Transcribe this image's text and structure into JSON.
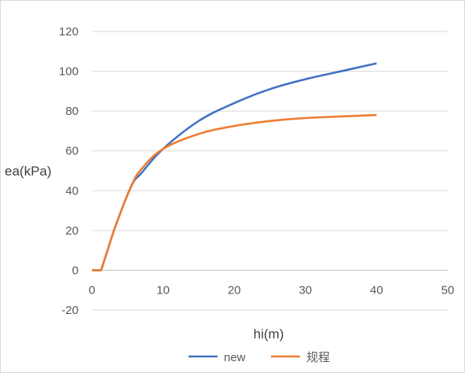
{
  "chart_data": {
    "type": "line",
    "title": "",
    "xlabel": "hi(m)",
    "ylabel": "ea(kPa)",
    "xlim": [
      0,
      50
    ],
    "ylim": [
      -20,
      120
    ],
    "x_ticks": [
      0,
      10,
      20,
      30,
      40,
      50
    ],
    "y_ticks": [
      -20,
      0,
      20,
      40,
      60,
      80,
      100,
      120
    ],
    "grid": "horizontal",
    "legend_position": "bottom",
    "series": [
      {
        "name": "new",
        "color": "#4472c4",
        "x": [
          0,
          1.3,
          3,
          5.5,
          7,
          10,
          15,
          20,
          25,
          30,
          35,
          40
        ],
        "y": [
          0,
          0,
          19,
          42,
          49,
          61,
          75,
          84,
          91,
          96,
          100,
          104
        ]
      },
      {
        "name": "规程",
        "color": "#ed7d31",
        "x": [
          0,
          1.3,
          3,
          5.5,
          7,
          10,
          15,
          20,
          25,
          30,
          35,
          40
        ],
        "y": [
          0,
          0,
          19,
          42,
          51,
          61,
          68.5,
          72.5,
          75,
          76.5,
          77.3,
          78
        ]
      }
    ]
  }
}
